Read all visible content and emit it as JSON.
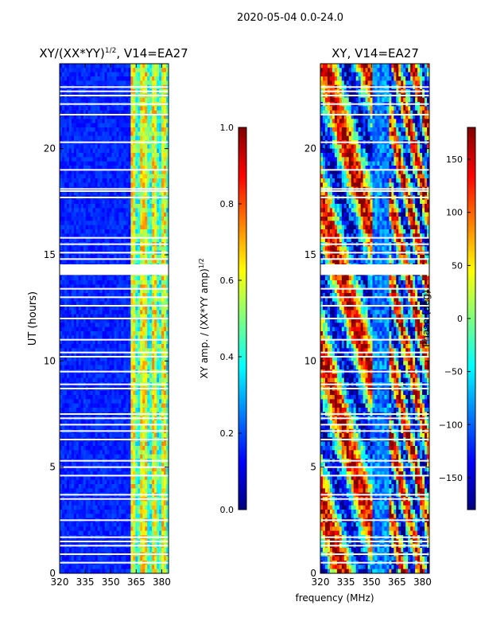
{
  "suptitle": "2020-05-04 0.0-24.0",
  "xlabel_shared": "frequency (MHz)",
  "colormap": [
    "#00007f",
    "#0000ff",
    "#007fff",
    "#00ffff",
    "#7fff7f",
    "#ffff00",
    "#ff7f00",
    "#ff0000",
    "#7f0000"
  ],
  "gap_color": "#ffffff",
  "chart_data": [
    {
      "type": "heatmap",
      "title": "XY/(XX*YY)",
      "title_exponent": "1/2",
      "title_suffix": ", V14=EA27",
      "xlabel": "",
      "ylabel": "UT (hours)",
      "xlim": [
        320,
        384
      ],
      "ylim": [
        0,
        24
      ],
      "xticks": [
        "320",
        "335",
        "350",
        "365",
        "380"
      ],
      "xtick_values": [
        320,
        335,
        350,
        365,
        380
      ],
      "yticks": [
        "0",
        "5",
        "10",
        "15",
        "20"
      ],
      "ytick_values": [
        0,
        5,
        10,
        15,
        20
      ],
      "description_bands": [
        {
          "x_range": [
            320,
            360
          ],
          "level": 0.1
        },
        {
          "x_range": [
            360,
            384
          ],
          "level": 0.45
        }
      ],
      "colorbar": {
        "label": "XY amp. / (XX*YY amp)",
        "label_exponent": "1/2",
        "range": [
          0.0,
          1.0
        ],
        "ticks": [
          "0.0",
          "0.2",
          "0.4",
          "0.6",
          "0.8",
          "1.0"
        ],
        "tick_values": [
          0.0,
          0.2,
          0.4,
          0.6,
          0.8,
          1.0
        ]
      },
      "gap_times": [
        0.5,
        0.9,
        1.3,
        1.5,
        1.7,
        2.5,
        3.5,
        3.7,
        4.6,
        5.0,
        5.3,
        6.3,
        6.7,
        7.0,
        7.3,
        7.5,
        8.7,
        8.9,
        9.5,
        10.2,
        10.4,
        11.0,
        12.0,
        12.6,
        13.0,
        13.4,
        14.5,
        14.2,
        14.8,
        15.1,
        15.5,
        15.8,
        17.7,
        18.0,
        18.1,
        19.0,
        20.3,
        21.6,
        22.1,
        22.5,
        22.7,
        22.9
      ]
    },
    {
      "type": "heatmap",
      "title": "XY, V14=EA27",
      "xlabel": "frequency (MHz)",
      "ylabel": "",
      "xlim": [
        320,
        384
      ],
      "ylim": [
        0,
        24
      ],
      "xticks": [
        "320",
        "335",
        "350",
        "365",
        "380"
      ],
      "xtick_values": [
        320,
        335,
        350,
        365,
        380
      ],
      "yticks": [
        "0",
        "5",
        "10",
        "15",
        "20"
      ],
      "ytick_values": [
        0,
        5,
        10,
        15,
        20
      ],
      "colorbar": {
        "label": "Phase (deg)",
        "range": [
          -180,
          180
        ],
        "ticks": [
          "−150",
          "−100",
          "−50",
          "0",
          "50",
          "100",
          "150"
        ],
        "tick_values": [
          -150,
          -100,
          -50,
          0,
          50,
          100,
          150
        ]
      },
      "gap_times": [
        0.5,
        0.9,
        1.3,
        1.5,
        1.7,
        2.5,
        3.5,
        3.7,
        4.6,
        5.0,
        5.3,
        6.3,
        6.7,
        7.0,
        7.3,
        7.5,
        8.7,
        8.9,
        9.5,
        10.2,
        10.4,
        11.0,
        12.0,
        12.6,
        13.0,
        13.4,
        14.5,
        14.2,
        14.8,
        15.1,
        15.5,
        15.8,
        17.7,
        18.0,
        18.1,
        19.0,
        20.3,
        21.6,
        22.1,
        22.5,
        22.7,
        22.9
      ]
    }
  ]
}
